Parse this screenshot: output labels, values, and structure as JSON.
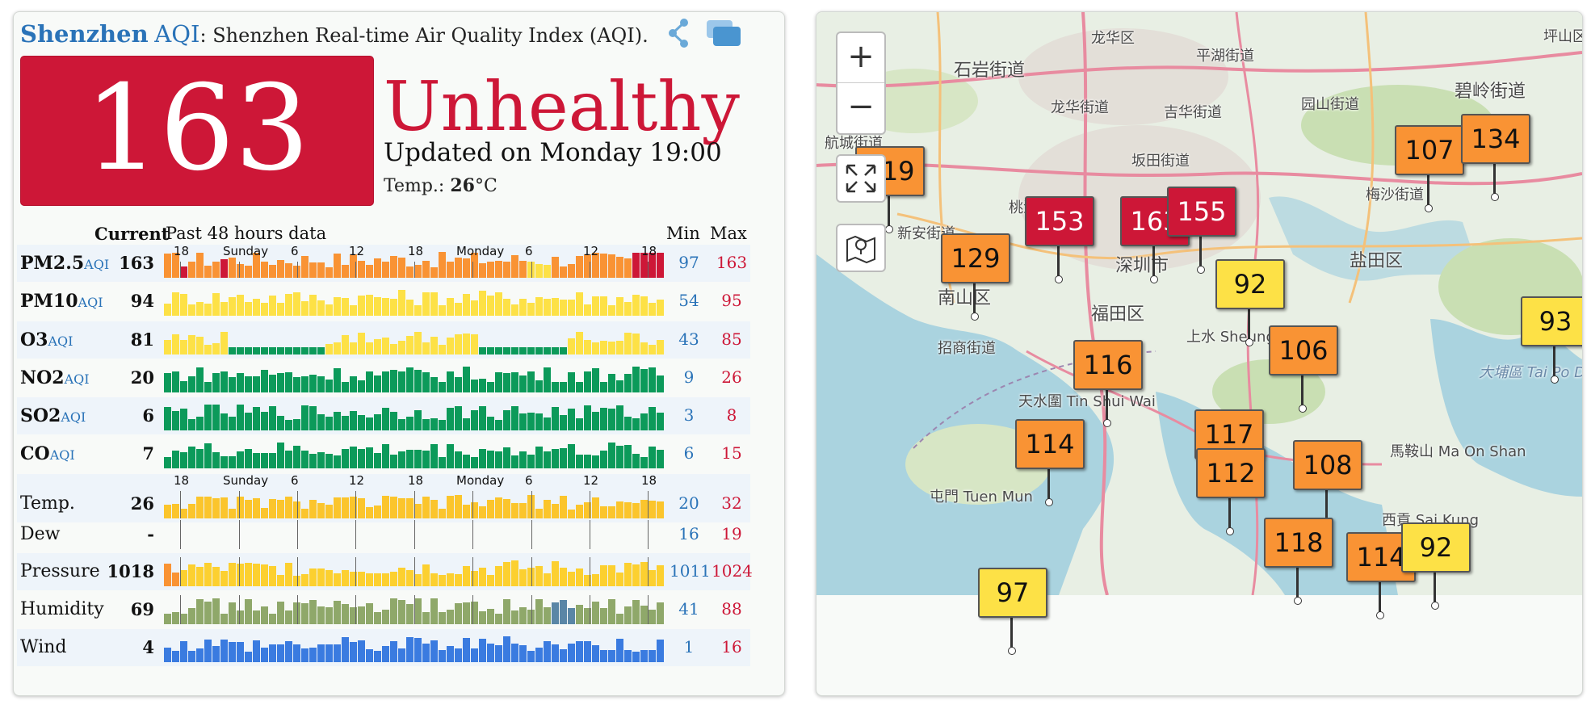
{
  "header": {
    "city": "Shenzhen",
    "aqi_label": "AQI",
    "colon": ":",
    "desc": "Shenzhen Real-time Air Quality Index (AQI)."
  },
  "summary": {
    "value": "163",
    "status": "Unhealthy",
    "updated": "Updated on Monday 19:00",
    "temp_label": "Temp.:",
    "temp_value": "26",
    "temp_unit": "°C"
  },
  "table": {
    "current_label": "Current",
    "past_label": "Past 48 hours data",
    "min_label": "Min",
    "max_label": "Max",
    "time_ticks": [
      "18",
      "Sunday",
      "6",
      "12",
      "18",
      "Monday",
      "6",
      "12",
      "18"
    ],
    "rows": [
      {
        "name": "PM2.5",
        "unit": "AQI",
        "current": "163",
        "min": "97",
        "max": "163"
      },
      {
        "name": "PM10",
        "unit": "AQI",
        "current": "94",
        "min": "54",
        "max": "95"
      },
      {
        "name": "O3",
        "unit": "AQI",
        "current": "81",
        "min": "43",
        "max": "85"
      },
      {
        "name": "NO2",
        "unit": "AQI",
        "current": "20",
        "min": "9",
        "max": "26"
      },
      {
        "name": "SO2",
        "unit": "AQI",
        "current": "6",
        "min": "3",
        "max": "8"
      },
      {
        "name": "CO",
        "unit": "AQI",
        "current": "7",
        "min": "6",
        "max": "15"
      },
      {
        "name": "Temp.",
        "unit": "",
        "current": "26",
        "min": "20",
        "max": "32"
      },
      {
        "name": "Dew",
        "unit": "",
        "current": "-",
        "min": "16",
        "max": "19"
      },
      {
        "name": "Pressure",
        "unit": "",
        "current": "1018",
        "min": "1011",
        "max": "1024"
      },
      {
        "name": "Humidity",
        "unit": "",
        "current": "69",
        "min": "41",
        "max": "88"
      },
      {
        "name": "Wind",
        "unit": "",
        "current": "4",
        "min": "1",
        "max": "16"
      }
    ]
  },
  "map": {
    "zoom_in": "+",
    "zoom_out": "−",
    "labels": [
      "龙华区",
      "石岩街道",
      "平湖街道",
      "坪山区",
      "碧岭街道",
      "龙华街道",
      "吉华街道",
      "园山街道",
      "坂田街道",
      "航城街道",
      "新安街道",
      "桃源",
      "深圳市",
      "盐田区",
      "南山区",
      "福田区",
      "梅沙街道",
      "上水 Sheung Shui",
      "招商街道",
      "大埔區 Tai Po District",
      "天水圍 Tin Shui Wai",
      "馬鞍山 Ma On Shan",
      "屯門 Tuen Mun",
      "西貢 Sai Kung"
    ],
    "markers": [
      {
        "value": "119",
        "color": "#f99334"
      },
      {
        "value": "107",
        "color": "#f99334"
      },
      {
        "value": "134",
        "color": "#f99334"
      },
      {
        "value": "153",
        "color": "#cd1737"
      },
      {
        "value": "163",
        "color": "#cd1737"
      },
      {
        "value": "155",
        "color": "#cd1737"
      },
      {
        "value": "129",
        "color": "#f99334"
      },
      {
        "value": "92",
        "color": "#fde146"
      },
      {
        "value": "93",
        "color": "#fde146"
      },
      {
        "value": "116",
        "color": "#f99334"
      },
      {
        "value": "106",
        "color": "#f99334"
      },
      {
        "value": "114",
        "color": "#f99334"
      },
      {
        "value": "117",
        "color": "#f99334"
      },
      {
        "value": "112",
        "color": "#f99334"
      },
      {
        "value": "108",
        "color": "#f99334"
      },
      {
        "value": "118",
        "color": "#f99334"
      },
      {
        "value": "114",
        "color": "#f99334"
      },
      {
        "value": "92",
        "color": "#fde146"
      },
      {
        "value": "97",
        "color": "#fde146"
      }
    ]
  },
  "colors": {
    "unhealthy": "#cd1737",
    "unhealthy_sensitive": "#f99334",
    "moderate": "#fde146",
    "good": "#0c9a5a",
    "blue": "#2a73b8"
  }
}
